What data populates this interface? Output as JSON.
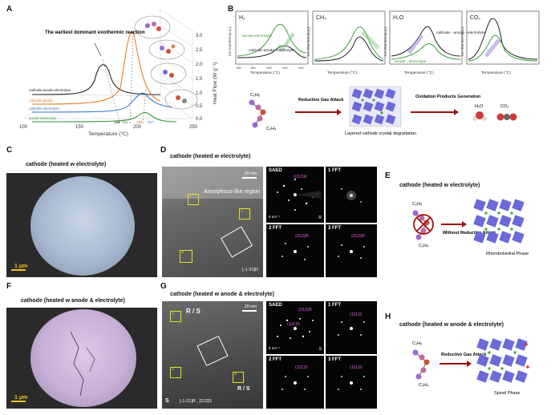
{
  "panels": {
    "A": {
      "label": "A",
      "annotation": "The earliest dominant exothermic reaction",
      "curves": [
        "cathode-anode-electrolyte",
        "cathode-anode",
        "cathode-electrolyte",
        "anode-electrolyte"
      ],
      "xlabel": "Temperature (°C)",
      "xticks": [
        "100",
        "150",
        "200",
        "250"
      ],
      "ylabel": "Heat Flow (W g⁻¹)",
      "yticks": [
        "0.0",
        "0.5",
        "1.0",
        "1.5",
        "2.0",
        "2.5",
        "3.0"
      ],
      "peak_marks": [
        "166",
        "191",
        "196",
        "207"
      ]
    },
    "B": {
      "label": "B",
      "gases": [
        "H₂",
        "CH₄",
        "H₂O",
        "CO₂"
      ],
      "ylabel": "Ion Current (a.u.)",
      "xlabel": "Temperature (°C)",
      "xticks": [
        "100",
        "150",
        "200",
        "250",
        "300"
      ],
      "legend_h2_green": "anode-electrolyte",
      "legend_h2_black": "cathode-anode- electrolyte",
      "legend_h2o_black": "cathode - anode - electrolyte",
      "legend_h2o_green": "anode - electrolyte",
      "scheme_arrow1": "Reductive Gas Attack",
      "scheme_arrow2": "Oxidation Products Generation",
      "scheme_caption": "Layered cathode crystal degradation",
      "mol_c2h5": "C₂H₅",
      "mol_c2h4": "C₂H₄",
      "h2o": "H₂O",
      "co2": "CO₂"
    },
    "C": {
      "label": "C",
      "title": "cathode (heated w electrolyte)",
      "scale": "1 μm"
    },
    "D": {
      "label": "D",
      "title": "cathode (heated w electrolyte)",
      "scale": "20 nm",
      "region": "Amorphous-like region",
      "zone": "[-1-21]R",
      "boxes": [
        "1",
        "2",
        "3"
      ],
      "saed": "SAED",
      "saed_scale": "5 nm⁻¹",
      "saed_tag": "R",
      "saed_hkl": "(012)R",
      "fft1": "1 FFT",
      "fft2": "2 FFT",
      "fft2_hkl": "(012)R",
      "fft3": "3 FFT",
      "fft3_hkl": "(012)R"
    },
    "E": {
      "label": "E",
      "title": "cathode (heated w electrolyte)",
      "arrow": "Without Reductive Attack",
      "phase": "Rhombohedral Phase",
      "mol_c2h5": "C₂H₅",
      "mol_c2h4": "C₂H₄"
    },
    "F": {
      "label": "F",
      "title": "cathode (heated w anode & electrolyte)",
      "scale": "1 μm"
    },
    "G": {
      "label": "G",
      "title": "cathode (heated w anode & electrolyte)",
      "scale": "20 nm",
      "rs1": "R / S",
      "rs2": "R / S",
      "s": "S",
      "zone": "[-1-21]R , [112]S",
      "boxes": [
        "1",
        "2",
        "3"
      ],
      "saed": "SAED",
      "saed_scale": "5 nm⁻¹",
      "saed_tag": "S",
      "saed_hkl1": "(012)R",
      "saed_hkl2": "(111)S",
      "fft1": "1 FFT",
      "fft1_hkl": "(111)S",
      "fft2": "2 FFT",
      "fft2_hkl": "(111)S",
      "fft3": "3 FFT",
      "fft3_hkl": "(111)S"
    },
    "H": {
      "label": "H",
      "title": "cathode (heated w anode & electrolyte)",
      "arrow": "Reductive Gas Attack",
      "phase": "Spinel Phase",
      "mol_c2h5": "C₂H₅",
      "mol_c2h4": "C₂H₄"
    }
  },
  "colors": {
    "black_curve": "#222222",
    "orange_curve": "#e87a1e",
    "blue_curve": "#3a7ac8",
    "green_curve": "#3a9a3a",
    "arrow_red": "#a01010",
    "lattice_blue": "#6a6ad8",
    "sem_blue": "#a8b8d0",
    "sem_purple": "#c8b0d8"
  }
}
